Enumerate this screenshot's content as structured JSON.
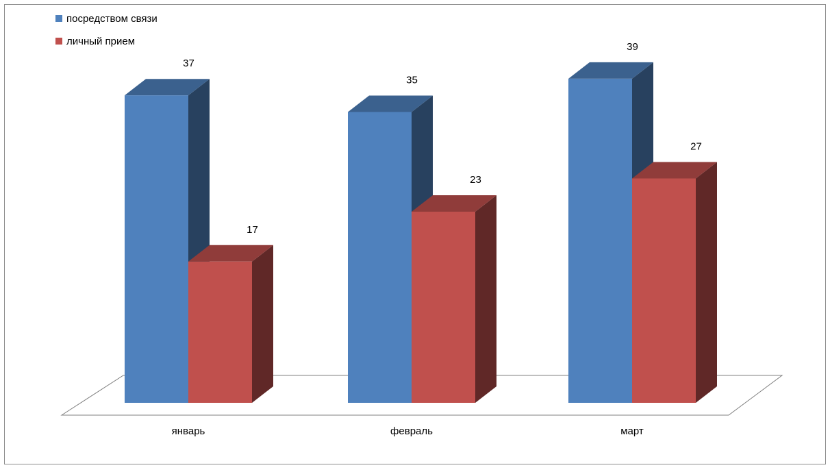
{
  "chart_data": {
    "type": "bar",
    "title": "",
    "xlabel": "",
    "ylabel": "",
    "categories": [
      "январь",
      "февраль",
      "март"
    ],
    "series": [
      {
        "name": "посредством связи",
        "values": [
          37,
          35,
          39
        ],
        "color": "#4F81BD"
      },
      {
        "name": "личный прием",
        "values": [
          17,
          23,
          27
        ],
        "color": "#C0504D"
      }
    ],
    "ylim": [
      0,
      39
    ],
    "grid": false,
    "three_d": true,
    "data_labels": true,
    "legend_position": "top-left"
  }
}
